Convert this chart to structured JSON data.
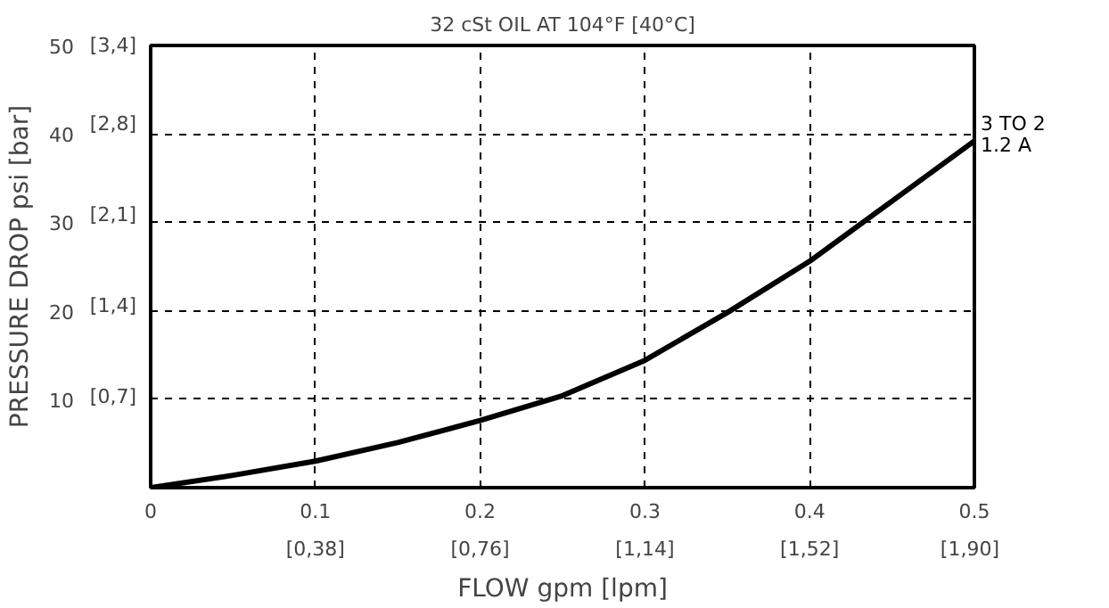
{
  "chart_data": {
    "type": "line",
    "title": "32 cSt OIL AT 104°F [40°C]",
    "xlabel": "FLOW gpm [lpm]",
    "ylabel": "PRESSURE DROP psi [bar]",
    "x": [
      0,
      0.05,
      0.1,
      0.15,
      0.2,
      0.25,
      0.3,
      0.35,
      0.4,
      0.45,
      0.5
    ],
    "series": [
      {
        "color": "#000000",
        "values": [
          0,
          1.4,
          3.0,
          5.1,
          7.6,
          10.4,
          14.4,
          19.8,
          25.6,
          32.4,
          39.2
        ]
      }
    ],
    "xlim": [
      0,
      0.5
    ],
    "ylim": [
      0,
      50
    ],
    "xticks": [
      0,
      0.1,
      0.2,
      0.3,
      0.4,
      0.5
    ],
    "yticks": [
      10,
      20,
      30,
      40,
      50
    ],
    "x2lim": [
      0,
      1.9
    ],
    "x2ticks": [
      {
        "value": 0.38,
        "label": "[0,38]"
      },
      {
        "value": 0.76,
        "label": "[0,76]"
      },
      {
        "value": 1.14,
        "label": "[1,14]"
      },
      {
        "value": 1.52,
        "label": "[1,52]"
      },
      {
        "value": 1.9,
        "label": "[1,90]"
      }
    ],
    "y2lim": [
      0,
      3.4
    ],
    "y2ticks": [
      {
        "value": 0.7,
        "label": "[0,7]"
      },
      {
        "value": 1.4,
        "label": "[1,4]"
      },
      {
        "value": 2.1,
        "label": "[2,1]"
      },
      {
        "value": 2.8,
        "label": "[2,8]"
      },
      {
        "value": 3.4,
        "label": "[3,4]"
      }
    ],
    "annotations": [
      {
        "text": "3 TO 2\n1.2 A",
        "x": 0.5,
        "y": 39.2
      }
    ],
    "grid": true,
    "marker": "none",
    "line_style": "solid"
  }
}
